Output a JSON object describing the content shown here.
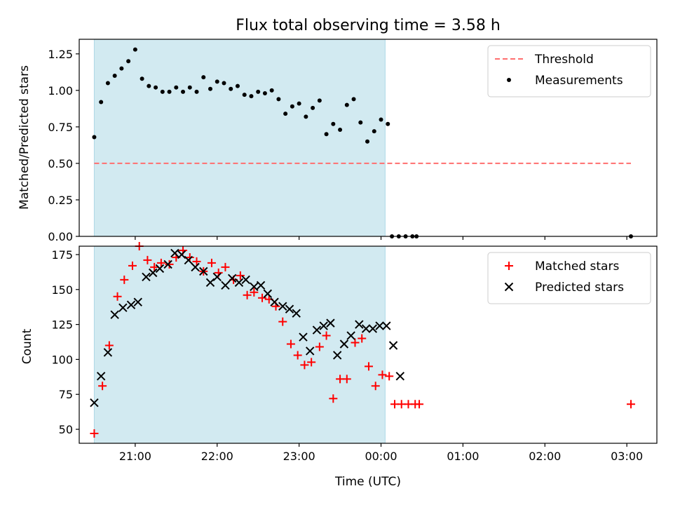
{
  "figure": {
    "title": "Flux total observing time = 3.58 h",
    "xlabel": "Time (UTC)",
    "colors": {
      "shade": "#add8e6",
      "threshold": "#ff6f6f",
      "measurement": "#000000",
      "matched": "#ff0000",
      "predicted": "#000000"
    }
  },
  "chart_data": [
    {
      "type": "scatter",
      "ylabel": "Matched/Predicted stars",
      "xlim": [
        "20:19",
        "03:22"
      ],
      "ylim": [
        0,
        1.35
      ],
      "yticks": [
        0.0,
        0.25,
        0.5,
        0.75,
        1.0,
        1.25
      ],
      "ytick_labels": [
        "0.00",
        "0.25",
        "0.50",
        "0.75",
        "1.00",
        "1.25"
      ],
      "xticks": [
        "21:00",
        "22:00",
        "23:00",
        "00:00",
        "01:00",
        "02:00",
        "03:00"
      ],
      "xtick_labels": [],
      "shaded_span": [
        "20:30",
        "00:03"
      ],
      "legend_position": "upper right",
      "threshold": {
        "name": "Threshold",
        "value": 0.5,
        "x": [
          "20:30",
          "03:03"
        ],
        "style": "dashed"
      },
      "series": [
        {
          "name": "Measurements",
          "marker": "dot",
          "points": [
            [
              "20:30",
              0.68
            ],
            [
              "20:35",
              0.92
            ],
            [
              "20:40",
              1.05
            ],
            [
              "20:45",
              1.1
            ],
            [
              "20:50",
              1.15
            ],
            [
              "20:55",
              1.2
            ],
            [
              "21:00",
              1.28
            ],
            [
              "21:05",
              1.08
            ],
            [
              "21:10",
              1.03
            ],
            [
              "21:15",
              1.02
            ],
            [
              "21:20",
              0.99
            ],
            [
              "21:25",
              0.99
            ],
            [
              "21:30",
              1.02
            ],
            [
              "21:35",
              0.99
            ],
            [
              "21:40",
              1.02
            ],
            [
              "21:45",
              0.99
            ],
            [
              "21:50",
              1.09
            ],
            [
              "21:55",
              1.01
            ],
            [
              "22:00",
              1.06
            ],
            [
              "22:05",
              1.05
            ],
            [
              "22:10",
              1.01
            ],
            [
              "22:15",
              1.03
            ],
            [
              "22:20",
              0.97
            ],
            [
              "22:25",
              0.96
            ],
            [
              "22:30",
              0.99
            ],
            [
              "22:35",
              0.98
            ],
            [
              "22:40",
              1.0
            ],
            [
              "22:45",
              0.94
            ],
            [
              "22:50",
              0.84
            ],
            [
              "22:55",
              0.89
            ],
            [
              "23:00",
              0.91
            ],
            [
              "23:05",
              0.82
            ],
            [
              "23:10",
              0.88
            ],
            [
              "23:15",
              0.93
            ],
            [
              "23:20",
              0.7
            ],
            [
              "23:25",
              0.77
            ],
            [
              "23:30",
              0.73
            ],
            [
              "23:35",
              0.9
            ],
            [
              "23:40",
              0.94
            ],
            [
              "23:45",
              0.78
            ],
            [
              "23:50",
              0.65
            ],
            [
              "23:55",
              0.72
            ],
            [
              "00:00",
              0.8
            ],
            [
              "00:05",
              0.77
            ],
            [
              "00:08",
              0.0
            ],
            [
              "00:13",
              0.0
            ],
            [
              "00:18",
              0.0
            ],
            [
              "00:23",
              0.0
            ],
            [
              "00:26",
              0.0
            ],
            [
              "03:03",
              0.0
            ]
          ]
        }
      ]
    },
    {
      "type": "scatter",
      "ylabel": "Count",
      "xlim": [
        "20:19",
        "03:22"
      ],
      "ylim": [
        40,
        181
      ],
      "yticks": [
        50,
        75,
        100,
        125,
        150,
        175
      ],
      "ytick_labels": [
        "50",
        "75",
        "100",
        "125",
        "150",
        "175"
      ],
      "xticks": [
        "21:00",
        "22:00",
        "23:00",
        "00:00",
        "01:00",
        "02:00",
        "03:00"
      ],
      "xtick_labels": [
        "21:00",
        "22:00",
        "23:00",
        "00:00",
        "01:00",
        "02:00",
        "03:00"
      ],
      "shaded_span": [
        "20:30",
        "00:03"
      ],
      "legend_position": "upper right",
      "series": [
        {
          "name": "Matched stars",
          "marker": "plus",
          "points": [
            [
              "20:30",
              47
            ],
            [
              "20:36",
              81
            ],
            [
              "20:41",
              110
            ],
            [
              "20:47",
              145
            ],
            [
              "20:52",
              157
            ],
            [
              "20:58",
              167
            ],
            [
              "21:03",
              181
            ],
            [
              "21:09",
              171
            ],
            [
              "21:14",
              166
            ],
            [
              "21:19",
              169
            ],
            [
              "21:25",
              168
            ],
            [
              "21:30",
              173
            ],
            [
              "21:35",
              178
            ],
            [
              "21:40",
              173
            ],
            [
              "21:45",
              170
            ],
            [
              "21:50",
              163
            ],
            [
              "21:56",
              169
            ],
            [
              "22:01",
              162
            ],
            [
              "22:06",
              166
            ],
            [
              "22:12",
              157
            ],
            [
              "22:17",
              160
            ],
            [
              "22:22",
              146
            ],
            [
              "22:27",
              148
            ],
            [
              "22:33",
              144
            ],
            [
              "22:38",
              143
            ],
            [
              "22:43",
              138
            ],
            [
              "22:48",
              127
            ],
            [
              "22:54",
              111
            ],
            [
              "22:59",
              103
            ],
            [
              "23:04",
              96
            ],
            [
              "23:09",
              98
            ],
            [
              "23:15",
              109
            ],
            [
              "23:20",
              117
            ],
            [
              "23:25",
              72
            ],
            [
              "23:30",
              86
            ],
            [
              "23:35",
              86
            ],
            [
              "23:41",
              112
            ],
            [
              "23:46",
              115
            ],
            [
              "23:51",
              95
            ],
            [
              "23:56",
              81
            ],
            [
              "00:01",
              89
            ],
            [
              "00:06",
              88
            ],
            [
              "00:10",
              68
            ],
            [
              "00:15",
              68
            ],
            [
              "00:20",
              68
            ],
            [
              "00:25",
              68
            ],
            [
              "00:28",
              68
            ],
            [
              "03:03",
              68
            ]
          ]
        },
        {
          "name": "Predicted stars",
          "marker": "x",
          "points": [
            [
              "20:30",
              69
            ],
            [
              "20:35",
              88
            ],
            [
              "20:40",
              105
            ],
            [
              "20:45",
              132
            ],
            [
              "20:51",
              137
            ],
            [
              "20:57",
              139
            ],
            [
              "21:02",
              141
            ],
            [
              "21:08",
              159
            ],
            [
              "21:13",
              162
            ],
            [
              "21:18",
              165
            ],
            [
              "21:24",
              168
            ],
            [
              "21:29",
              176
            ],
            [
              "21:34",
              175
            ],
            [
              "21:39",
              171
            ],
            [
              "21:44",
              166
            ],
            [
              "21:50",
              163
            ],
            [
              "21:55",
              155
            ],
            [
              "22:00",
              159
            ],
            [
              "22:06",
              153
            ],
            [
              "22:11",
              158
            ],
            [
              "22:16",
              155
            ],
            [
              "22:21",
              157
            ],
            [
              "22:27",
              152
            ],
            [
              "22:32",
              153
            ],
            [
              "22:37",
              147
            ],
            [
              "22:42",
              141
            ],
            [
              "22:48",
              138
            ],
            [
              "22:53",
              136
            ],
            [
              "22:58",
              133
            ],
            [
              "23:03",
              116
            ],
            [
              "23:08",
              106
            ],
            [
              "23:13",
              121
            ],
            [
              "23:18",
              124
            ],
            [
              "23:23",
              126
            ],
            [
              "23:28",
              103
            ],
            [
              "23:33",
              111
            ],
            [
              "23:38",
              117
            ],
            [
              "23:44",
              125
            ],
            [
              "23:49",
              122
            ],
            [
              "23:54",
              122
            ],
            [
              "23:59",
              124
            ],
            [
              "00:04",
              124
            ],
            [
              "00:09",
              110
            ],
            [
              "00:14",
              88
            ]
          ]
        }
      ]
    }
  ]
}
